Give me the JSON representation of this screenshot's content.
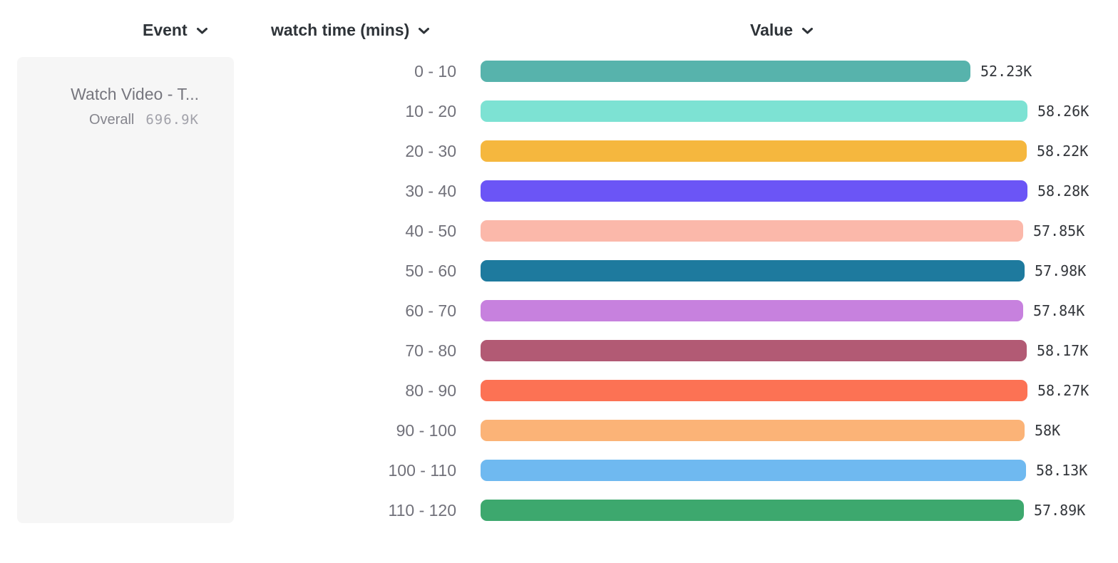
{
  "header": {
    "columns": [
      {
        "label": "Event"
      },
      {
        "label": "watch time (mins)"
      },
      {
        "label": "Value"
      }
    ]
  },
  "legend_card": {
    "event_name": "Watch Video - T...",
    "overall_label": "Overall",
    "overall_value": "696.9K"
  },
  "chart_data": {
    "type": "bar",
    "orientation": "horizontal",
    "title": "",
    "xlabel": "Value",
    "ylabel": "watch time (mins)",
    "xlim": [
      0,
      58280
    ],
    "grid": false,
    "legend_position": "left-card",
    "categories": [
      "0 - 10",
      "10 - 20",
      "20 - 30",
      "30 - 40",
      "40 - 50",
      "50 - 60",
      "60 - 70",
      "70 - 80",
      "80 - 90",
      "90 - 100",
      "100 - 110",
      "110 - 120"
    ],
    "values": [
      52230,
      58260,
      58220,
      58280,
      57850,
      57980,
      57840,
      58170,
      58270,
      58000,
      58130,
      57890
    ],
    "value_labels": [
      "52.23K",
      "58.26K",
      "58.22K",
      "58.28K",
      "57.85K",
      "57.98K",
      "57.84K",
      "58.17K",
      "58.27K",
      "58K",
      "58.13K",
      "57.89K"
    ],
    "bar_colors": [
      "#57b3ac",
      "#7de2d3",
      "#f5b73e",
      "#6b55f6",
      "#fbb8aa",
      "#1e7a9e",
      "#c781de",
      "#b25a74",
      "#fc7254",
      "#fbb377",
      "#6fb9f0",
      "#3da86e"
    ]
  },
  "colors": {
    "header_text": "#2e3338",
    "category_label": "#71717a",
    "value_label": "#33363b",
    "card_background": "#f6f6f6",
    "page_background": "#ffffff"
  },
  "icons": {
    "chevron_down": "chevron-down"
  }
}
